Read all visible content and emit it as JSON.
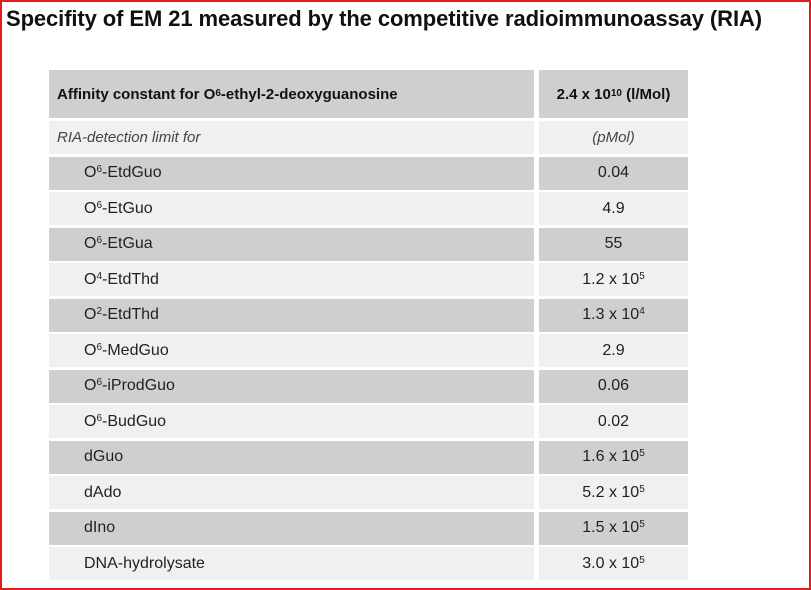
{
  "title": "Specifity of EM 21 measured by the competitive radioimmunoassay (RIA)",
  "header": {
    "label": {
      "pre": "Affinity constant for O",
      "sup": "6",
      "post": "-ethyl-2-deoxyguanosine"
    },
    "value": {
      "pre": "2.4 x 10",
      "sup": "10",
      "post": " (l/Mol)"
    }
  },
  "subheader": {
    "label": "RIA-detection limit for",
    "unit": "(pMol)"
  },
  "rows": [
    {
      "label": {
        "pre": "O",
        "sup": "6",
        "post": "-EtdGuo"
      },
      "value": {
        "pre": "0.04",
        "sup": "",
        "post": ""
      }
    },
    {
      "label": {
        "pre": "O",
        "sup": "6",
        "post": "-EtGuo"
      },
      "value": {
        "pre": "4.9",
        "sup": "",
        "post": ""
      }
    },
    {
      "label": {
        "pre": "O",
        "sup": "6",
        "post": "-EtGua"
      },
      "value": {
        "pre": "55",
        "sup": "",
        "post": ""
      }
    },
    {
      "label": {
        "pre": "O",
        "sup": "4",
        "post": "-EtdThd"
      },
      "value": {
        "pre": "1.2 x 10",
        "sup": "5",
        "post": ""
      }
    },
    {
      "label": {
        "pre": "O",
        "sup": "2",
        "post": "-EtdThd"
      },
      "value": {
        "pre": "1.3 x 10",
        "sup": "4",
        "post": ""
      }
    },
    {
      "label": {
        "pre": "O",
        "sup": "6",
        "post": "-MedGuo"
      },
      "value": {
        "pre": "2.9",
        "sup": "",
        "post": ""
      }
    },
    {
      "label": {
        "pre": "O",
        "sup": "6",
        "post": "-iProdGuo"
      },
      "value": {
        "pre": "0.06",
        "sup": "",
        "post": ""
      }
    },
    {
      "label": {
        "pre": "O",
        "sup": "6",
        "post": "-BudGuo"
      },
      "value": {
        "pre": "0.02",
        "sup": "",
        "post": ""
      }
    },
    {
      "label": {
        "pre": "dGuo",
        "sup": "",
        "post": ""
      },
      "value": {
        "pre": "1.6 x 10",
        "sup": "5",
        "post": ""
      }
    },
    {
      "label": {
        "pre": "dAdo",
        "sup": "",
        "post": ""
      },
      "value": {
        "pre": "5.2 x 10",
        "sup": "5",
        "post": ""
      }
    },
    {
      "label": {
        "pre": "dIno",
        "sup": "",
        "post": ""
      },
      "value": {
        "pre": "1.5 x 10",
        "sup": "5",
        "post": ""
      }
    },
    {
      "label": {
        "pre": "DNA-hydrolysate",
        "sup": "",
        "post": ""
      },
      "value": {
        "pre": "3.0 x 10",
        "sup": "5",
        "post": ""
      }
    }
  ],
  "colors": {
    "border": "#e11d1d",
    "row_dark": "#cfcfcf",
    "row_light": "#f0f0f0"
  }
}
